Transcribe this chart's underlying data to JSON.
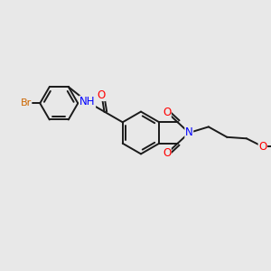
{
  "bg_color": "#e8e8e8",
  "bond_color": "#1a1a1a",
  "bond_width": 1.4,
  "atom_colors": {
    "O": "#ff0000",
    "N": "#0000ff",
    "Br": "#cc6600",
    "C": "#1a1a1a"
  },
  "font_size": 8.5,
  "fig_w": 3.0,
  "fig_h": 3.0,
  "dpi": 100
}
